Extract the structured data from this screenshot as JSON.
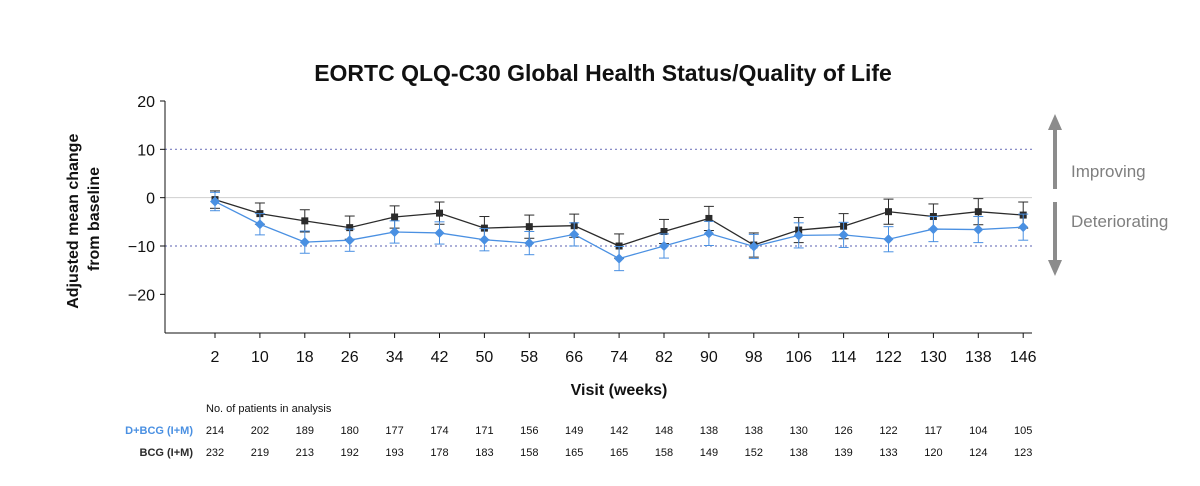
{
  "chart_data": {
    "type": "line",
    "title": "EORTC QLQ-C30 Global Health Status/Quality of Life",
    "xlabel": "Visit (weeks)",
    "ylabel": [
      "Adjusted mean change",
      "from baseline"
    ],
    "x": [
      2,
      10,
      18,
      26,
      34,
      42,
      50,
      58,
      66,
      74,
      82,
      90,
      98,
      106,
      114,
      122,
      130,
      138,
      146
    ],
    "yticks": [
      20,
      10,
      0,
      -10,
      -20
    ],
    "ytick_labels": [
      "20",
      "10",
      "0",
      "−10",
      "−20"
    ],
    "ylim": [
      -28,
      20
    ],
    "reference_lines": [
      10,
      -10
    ],
    "series": [
      {
        "name": "D+BCG (I+M)",
        "color": "#4a90e2",
        "marker": "diamond",
        "values": [
          -0.8,
          -5.5,
          -9.2,
          -8.8,
          -7.1,
          -7.3,
          -8.7,
          -9.4,
          -7.6,
          -12.6,
          -10.0,
          -7.4,
          -10.1,
          -7.8,
          -7.7,
          -8.6,
          -6.5,
          -6.6,
          -6.1
        ],
        "errors": [
          1.9,
          2.2,
          2.3,
          2.3,
          2.3,
          2.3,
          2.3,
          2.4,
          2.4,
          2.5,
          2.5,
          2.5,
          2.5,
          2.6,
          2.6,
          2.6,
          2.6,
          2.7,
          2.7
        ]
      },
      {
        "name": "BCG (I+M)",
        "color": "#2b2b2b",
        "marker": "square",
        "values": [
          -0.4,
          -3.3,
          -4.8,
          -6.2,
          -4.0,
          -3.2,
          -6.3,
          -6.0,
          -5.8,
          -10.0,
          -7.0,
          -4.3,
          -9.8,
          -6.7,
          -5.9,
          -2.9,
          -3.9,
          -2.9,
          -3.6
        ],
        "errors": [
          1.8,
          2.2,
          2.3,
          2.4,
          2.3,
          2.3,
          2.4,
          2.4,
          2.4,
          2.5,
          2.5,
          2.5,
          2.5,
          2.6,
          2.6,
          2.6,
          2.6,
          2.7,
          2.7
        ]
      }
    ],
    "annotations": {
      "improving": "Improving",
      "deteriorating": "Deteriorating"
    },
    "patients_table": {
      "heading": "No. of patients in analysis",
      "rows": [
        {
          "label": "D+BCG (I+M)",
          "color": "#4a90e2",
          "values": [
            "214",
            "202",
            "189",
            "180",
            "177",
            "174",
            "171",
            "156",
            "149",
            "142",
            "148",
            "138",
            "138",
            "130",
            "126",
            "122",
            "117",
            "104",
            "105"
          ]
        },
        {
          "label": "BCG (I+M)",
          "color": "#2b2b2b",
          "values": [
            "232",
            "219",
            "213",
            "192",
            "193",
            "178",
            "183",
            "158",
            "165",
            "165",
            "158",
            "149",
            "152",
            "138",
            "139",
            "133",
            "120",
            "124",
            "123"
          ]
        }
      ]
    }
  }
}
